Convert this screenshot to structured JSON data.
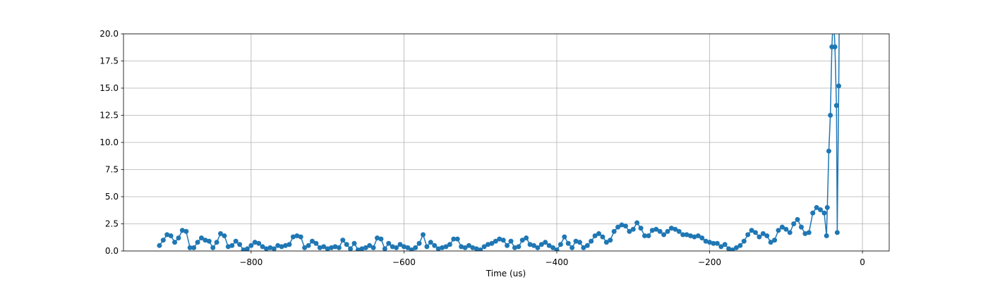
{
  "chart_data": {
    "type": "line",
    "x_label": "Time (us)",
    "color": "#1f77b4",
    "grid": true,
    "marker": "o",
    "xlim": [
      -967,
      35
    ],
    "ylim": [
      0,
      20
    ],
    "xticks": [
      {
        "value": -800,
        "label": "−800"
      },
      {
        "value": -600,
        "label": "−600"
      },
      {
        "value": -400,
        "label": "−400"
      },
      {
        "value": -200,
        "label": "−200"
      },
      0
    ],
    "yticks": [
      {
        "value": 0,
        "label": "0.0"
      },
      2.5,
      {
        "value": 5,
        "label": "5.0"
      },
      7.5,
      {
        "value": 10,
        "label": "10.0"
      },
      12.5,
      {
        "value": 15,
        "label": "15.0"
      },
      17.5,
      {
        "value": 20,
        "label": "20.0"
      }
    ],
    "x": [
      -920,
      -915,
      -910,
      -905,
      -900,
      -895,
      -890,
      -885,
      -880,
      -875,
      -870,
      -865,
      -860,
      -855,
      -850,
      -845,
      -840,
      -835,
      -830,
      -825,
      -820,
      -815,
      -810,
      -805,
      -800,
      -795,
      -790,
      -785,
      -780,
      -775,
      -770,
      -765,
      -760,
      -755,
      -750,
      -745,
      -740,
      -735,
      -730,
      -725,
      -720,
      -715,
      -710,
      -705,
      -700,
      -695,
      -690,
      -685,
      -680,
      -675,
      -670,
      -665,
      -660,
      -655,
      -650,
      -645,
      -640,
      -635,
      -630,
      -625,
      -620,
      -615,
      -610,
      -605,
      -600,
      -595,
      -590,
      -585,
      -580,
      -575,
      -570,
      -565,
      -560,
      -555,
      -550,
      -545,
      -540,
      -535,
      -530,
      -525,
      -520,
      -515,
      -510,
      -505,
      -500,
      -495,
      -490,
      -485,
      -480,
      -475,
      -470,
      -465,
      -460,
      -455,
      -450,
      -445,
      -440,
      -435,
      -430,
      -425,
      -420,
      -415,
      -410,
      -405,
      -400,
      -395,
      -390,
      -385,
      -380,
      -375,
      -370,
      -365,
      -360,
      -355,
      -350,
      -345,
      -340,
      -335,
      -330,
      -325,
      -320,
      -315,
      -310,
      -305,
      -300,
      -295,
      -290,
      -285,
      -280,
      -275,
      -270,
      -265,
      -260,
      -255,
      -250,
      -245,
      -240,
      -235,
      -230,
      -225,
      -220,
      -215,
      -210,
      -205,
      -200,
      -195,
      -190,
      -185,
      -180,
      -175,
      -170,
      -165,
      -160,
      -155,
      -150,
      -145,
      -140,
      -135,
      -130,
      -125,
      -120,
      -115,
      -110,
      -105,
      -100,
      -95,
      -90,
      -85,
      -80,
      -75,
      -70,
      -65,
      -60,
      -55,
      -50,
      -47,
      -46,
      -44,
      -42,
      -40,
      -38,
      -36,
      -34,
      -33,
      -31,
      -30
    ],
    "values": [
      0.5,
      1.0,
      1.5,
      1.4,
      0.8,
      1.2,
      1.9,
      1.8,
      0.3,
      0.3,
      0.8,
      1.2,
      1.0,
      0.9,
      0.3,
      0.8,
      1.6,
      1.4,
      0.4,
      0.5,
      0.9,
      0.6,
      0.1,
      0.2,
      0.5,
      0.8,
      0.7,
      0.4,
      0.2,
      0.3,
      0.2,
      0.5,
      0.4,
      0.5,
      0.6,
      1.3,
      1.4,
      1.3,
      0.3,
      0.5,
      0.9,
      0.7,
      0.3,
      0.4,
      0.2,
      0.3,
      0.4,
      0.3,
      1.0,
      0.6,
      0.2,
      0.7,
      0.1,
      0.2,
      0.3,
      0.5,
      0.3,
      1.2,
      1.1,
      0.2,
      0.7,
      0.4,
      0.3,
      0.6,
      0.4,
      0.3,
      0.1,
      0.3,
      0.7,
      1.5,
      0.4,
      0.8,
      0.5,
      0.2,
      0.3,
      0.4,
      0.6,
      1.1,
      1.1,
      0.4,
      0.3,
      0.5,
      0.3,
      0.2,
      0.1,
      0.4,
      0.6,
      0.7,
      0.9,
      1.1,
      1.0,
      0.5,
      0.9,
      0.3,
      0.4,
      1.0,
      1.2,
      0.6,
      0.5,
      0.3,
      0.6,
      0.8,
      0.5,
      0.3,
      0.1,
      0.6,
      1.3,
      0.7,
      0.3,
      0.9,
      0.8,
      0.3,
      0.5,
      0.9,
      1.4,
      1.6,
      1.3,
      0.8,
      1.0,
      1.8,
      2.2,
      2.4,
      2.3,
      1.8,
      2.0,
      2.6,
      2.1,
      1.4,
      1.4,
      1.9,
      2.0,
      1.8,
      1.5,
      1.8,
      2.1,
      2.0,
      1.8,
      1.5,
      1.5,
      1.4,
      1.3,
      1.4,
      1.2,
      0.9,
      0.8,
      0.7,
      0.7,
      0.4,
      0.6,
      0.2,
      0.1,
      0.3,
      0.5,
      0.9,
      1.5,
      1.9,
      1.7,
      1.3,
      1.6,
      1.4,
      0.8,
      1.0,
      1.9,
      2.2,
      2.0,
      1.7,
      2.5,
      2.9,
      2.2,
      1.6,
      1.7,
      3.5,
      4.0,
      3.8,
      3.5,
      1.4,
      4.0,
      9.2,
      12.5,
      18.8,
      22,
      18.8,
      13.4,
      1.7,
      15.2,
      25
    ]
  }
}
